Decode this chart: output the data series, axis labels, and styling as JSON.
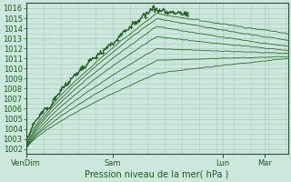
{
  "xlabel": "Pression niveau de la mer( hPa )",
  "ylim": [
    1001.5,
    1016.5
  ],
  "yticks": [
    1002,
    1003,
    1004,
    1005,
    1006,
    1007,
    1008,
    1009,
    1010,
    1011,
    1012,
    1013,
    1014,
    1015,
    1016
  ],
  "xtick_labels": [
    "VenDim",
    "Sam",
    "Lun",
    "Mar"
  ],
  "xtick_positions": [
    0.0,
    0.33,
    0.75,
    0.91
  ],
  "background_color": "#cce8dc",
  "grid_color": "#aaccbb",
  "line_color": "#1a5c1a",
  "label_fontsize": 7,
  "tick_fontsize": 6
}
